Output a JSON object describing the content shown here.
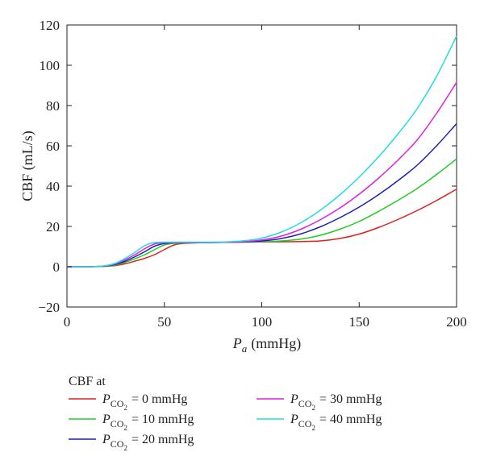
{
  "chart_data": {
    "type": "line",
    "xlabel": "Pa (mmHg)",
    "xlabel_var": "P",
    "xlabel_sub": "a",
    "xlabel_unit": "(mmHg)",
    "ylabel": "CBF (mL/s)",
    "xlim": [
      0,
      200
    ],
    "ylim": [
      -20,
      120
    ],
    "xticks": [
      0,
      50,
      100,
      150,
      200
    ],
    "yticks": [
      -20,
      0,
      20,
      40,
      60,
      80,
      100,
      120
    ],
    "grid": false,
    "legend_title": "CBF at",
    "legend_placement": "bottom",
    "series": [
      {
        "name": "PCO2 = 0 mmHg",
        "label_parts": {
          "var": "P",
          "sub": "CO",
          "subsub": "2",
          "text": "= 0 mmHg"
        },
        "color": "#e0201f",
        "x": [
          0,
          10,
          20,
          25,
          30,
          35,
          40,
          45,
          50,
          55,
          60,
          65,
          70,
          80,
          90,
          100,
          110,
          120,
          130,
          140,
          150,
          160,
          170,
          180,
          190,
          200
        ],
        "y": [
          0,
          0,
          0.2,
          0.6,
          1.5,
          2.8,
          4.2,
          6.0,
          8.5,
          10.8,
          11.6,
          11.8,
          12.0,
          12.1,
          12.2,
          12.3,
          12.4,
          12.5,
          12.8,
          14.0,
          16.2,
          19.5,
          23.5,
          28.0,
          33.0,
          38.5
        ]
      },
      {
        "name": "PCO2 = 10 mmHg",
        "label_parts": {
          "var": "P",
          "sub": "CO",
          "subsub": "2",
          "text": "= 10 mmHg"
        },
        "color": "#22cc22",
        "x": [
          0,
          10,
          20,
          25,
          30,
          35,
          40,
          45,
          50,
          55,
          60,
          65,
          70,
          80,
          90,
          100,
          110,
          120,
          130,
          140,
          150,
          160,
          170,
          180,
          190,
          200
        ],
        "y": [
          0,
          0,
          0.3,
          0.9,
          2.2,
          4.0,
          6.0,
          8.5,
          10.8,
          11.6,
          11.9,
          12.0,
          12.0,
          12.1,
          12.2,
          12.4,
          12.8,
          13.7,
          15.6,
          18.6,
          22.5,
          27.5,
          33.0,
          39.0,
          46.0,
          53.5
        ]
      },
      {
        "name": "PCO2 = 20 mmHg",
        "label_parts": {
          "var": "P",
          "sub": "CO",
          "subsub": "2",
          "text": "= 20 mmHg"
        },
        "color": "#1f1fb4",
        "x": [
          0,
          10,
          20,
          25,
          30,
          35,
          40,
          45,
          50,
          55,
          60,
          65,
          70,
          80,
          90,
          100,
          110,
          120,
          130,
          140,
          150,
          160,
          170,
          180,
          190,
          200
        ],
        "y": [
          0,
          0,
          0.4,
          1.2,
          2.8,
          5.0,
          7.5,
          10.2,
          11.5,
          11.9,
          12.0,
          12.0,
          12.0,
          12.1,
          12.3,
          12.8,
          14.0,
          16.3,
          19.8,
          24.3,
          29.6,
          35.8,
          42.8,
          50.6,
          60.3,
          71.0
        ]
      },
      {
        "name": "PCO2 = 30 mmHg",
        "label_parts": {
          "var": "P",
          "sub": "CO",
          "subsub": "2",
          "text": "= 30 mmHg"
        },
        "color": "#e020e0",
        "x": [
          0,
          10,
          20,
          25,
          30,
          35,
          40,
          45,
          50,
          55,
          60,
          65,
          70,
          80,
          90,
          100,
          110,
          120,
          130,
          140,
          150,
          160,
          170,
          180,
          190,
          200
        ],
        "y": [
          0,
          0,
          0.5,
          1.5,
          3.5,
          6.0,
          9.0,
          11.3,
          11.9,
          12.0,
          12.0,
          12.0,
          12.0,
          12.1,
          12.4,
          13.3,
          15.2,
          18.6,
          23.3,
          29.1,
          36.0,
          44.0,
          53.0,
          63.2,
          76.5,
          91.5
        ]
      },
      {
        "name": "PCO2 = 40 mmHg",
        "label_parts": {
          "var": "P",
          "sub": "CO",
          "subsub": "2",
          "text": "= 40 mmHg"
        },
        "color": "#22dddd",
        "x": [
          0,
          10,
          20,
          25,
          30,
          35,
          40,
          45,
          50,
          55,
          60,
          65,
          70,
          80,
          90,
          100,
          110,
          120,
          130,
          140,
          150,
          160,
          170,
          180,
          190,
          200
        ],
        "y": [
          0,
          0,
          0.6,
          1.8,
          4.2,
          7.2,
          10.5,
          12.0,
          12.2,
          12.2,
          12.2,
          12.2,
          12.2,
          12.3,
          12.8,
          14.2,
          17.2,
          21.8,
          28.0,
          35.6,
          44.5,
          54.6,
          66.0,
          78.8,
          95.0,
          114.5
        ]
      }
    ]
  }
}
